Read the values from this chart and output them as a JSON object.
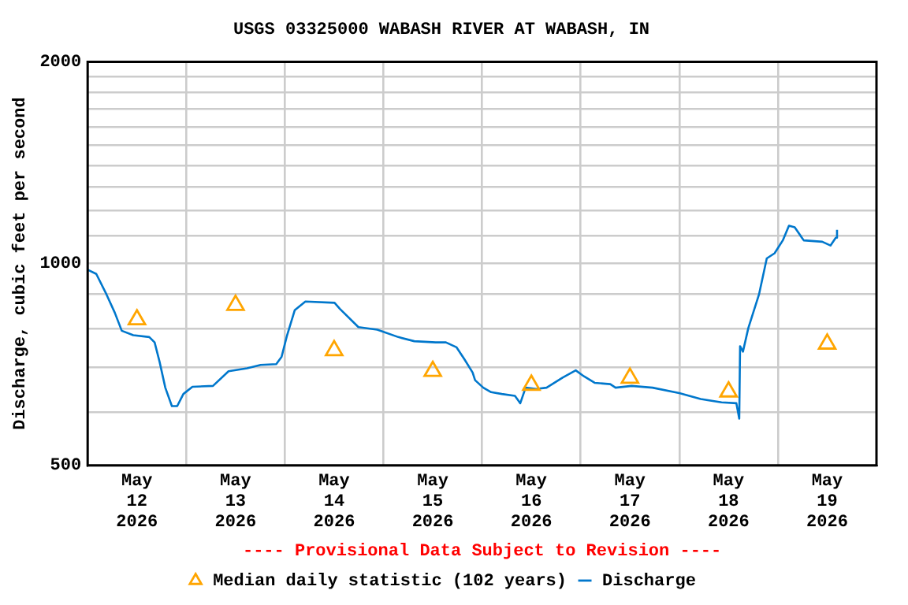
{
  "chart_data": {
    "type": "line",
    "title": "USGS 03325000 WABASH RIVER AT WABASH, IN",
    "ylabel": "Discharge, cubic feet per second",
    "annotations": [
      "---- Provisional Data Subject to Revision ----"
    ],
    "log": "y",
    "grid": true,
    "legend": "bottom",
    "xlim": [
      "2026-05-12",
      "2026-05-20"
    ],
    "xticks": [
      {
        "value": "2026-05-12T12:00",
        "label": "May 12 2026"
      },
      {
        "value": "2026-05-13",
        "label": null
      },
      {
        "value": "2026-05-13T12:00",
        "label": "May 13 2026"
      },
      {
        "value": "2026-05-14",
        "label": null
      },
      {
        "value": "2026-05-14T12:00",
        "label": "May 14 2026"
      },
      {
        "value": "2026-05-15",
        "label": null
      },
      {
        "value": "2026-05-15T12:00",
        "label": "May 15 2026"
      },
      {
        "value": "2026-05-16",
        "label": null
      },
      {
        "value": "2026-05-16T12:00",
        "label": "May 16 2026"
      },
      {
        "value": "2026-05-17",
        "label": null
      },
      {
        "value": "2026-05-17T12:00",
        "label": "May 17 2026"
      },
      {
        "value": "2026-05-18",
        "label": null
      },
      {
        "value": "2026-05-18T12:00",
        "label": "May 18 2026"
      },
      {
        "value": "2026-05-19",
        "label": null
      },
      {
        "value": "2026-05-19T12:00",
        "label": "May 19 2026"
      }
    ],
    "ylim": [
      500,
      2000
    ],
    "yticks": [
      500,
      {
        "value": 600,
        "label": null
      },
      {
        "value": 700,
        "label": null
      },
      {
        "value": 800,
        "label": null
      },
      {
        "value": 900,
        "label": null
      },
      1000,
      {
        "value": 1100,
        "label": null
      },
      {
        "value": 1200,
        "label": null
      },
      {
        "value": 1300,
        "label": null
      },
      {
        "value": 1400,
        "label": null
      },
      {
        "value": 1500,
        "label": null
      },
      {
        "value": 1600,
        "label": null
      },
      {
        "value": 1700,
        "label": null
      },
      {
        "value": 1800,
        "label": null
      },
      {
        "value": 1900,
        "label": null
      },
      2000
    ],
    "series": [
      {
        "name": "Median daily statistic (102 years)",
        "type": "scatter",
        "marker": "triangle",
        "color": "#ffa500",
        "x": [
          "2026-05-12T12:00",
          "2026-05-13T12:00",
          "2026-05-14T12:00",
          "2026-05-15T12:00",
          "2026-05-16T12:00",
          "2026-05-17T12:00",
          "2026-05-18T12:00",
          "2026-05-19T12:00"
        ],
        "values": [
          825,
          867,
          742,
          691,
          659,
          675,
          644,
          759
        ]
      },
      {
        "name": "Discharge",
        "marker": "none",
        "line_style": "solid",
        "color": "#0077cc",
        "x": [
          "2026-05-12T00:00",
          "2026-05-12T02:06",
          "2026-05-12T04:36",
          "2026-05-12T06:36",
          "2026-05-12T08:18",
          "2026-05-12T11:06",
          "2026-05-12T15:00",
          "2026-05-12T16:18",
          "2026-05-12T17:30",
          "2026-05-12T18:54",
          "2026-05-12T20:30",
          "2026-05-12T21:48",
          "2026-05-12T23:18",
          "2026-05-13T01:30",
          "2026-05-13T06:30",
          "2026-05-13T10:18",
          "2026-05-13T14:48",
          "2026-05-13T18:06",
          "2026-05-13T21:54",
          "2026-05-13T23:12",
          "2026-05-14T00:30",
          "2026-05-14T02:24",
          "2026-05-14T05:00",
          "2026-05-14T12:06",
          "2026-05-14T13:24",
          "2026-05-14T17:54",
          "2026-05-14T22:30",
          "2026-05-15T03:36",
          "2026-05-15T07:30",
          "2026-05-15T12:42",
          "2026-05-15T15:12",
          "2026-05-15T17:48",
          "2026-05-15T19:42",
          "2026-05-15T21:42",
          "2026-05-15T22:18",
          "2026-05-16T00:18",
          "2026-05-16T02:12",
          "2026-05-16T04:48",
          "2026-05-16T08:00",
          "2026-05-16T09:18",
          "2026-05-16T10:36",
          "2026-05-16T13:12",
          "2026-05-16T15:42",
          "2026-05-16T19:36",
          "2026-05-16T22:48",
          "2026-05-17T00:48",
          "2026-05-17T03:24",
          "2026-05-17T07:12",
          "2026-05-17T08:30",
          "2026-05-17T12:24",
          "2026-05-17T17:30",
          "2026-05-18T00:00",
          "2026-05-18T05:12",
          "2026-05-18T10:18",
          "2026-05-18T13:54",
          "2026-05-18T14:36",
          "2026-05-18T14:48",
          "2026-05-18T15:30",
          "2026-05-18T16:48",
          "2026-05-18T19:24",
          "2026-05-18T21:18",
          "2026-05-18T23:12",
          "2026-05-19T01:12",
          "2026-05-19T02:42",
          "2026-05-19T04:06",
          "2026-05-19T06:18",
          "2026-05-19T10:48",
          "2026-05-19T12:48",
          "2026-05-19T14:06",
          "2026-05-19T14:24"
        ],
        "values": [
          979,
          965,
          899,
          845,
          794,
          782,
          777,
          763,
          714,
          653,
          613,
          613,
          639,
          655,
          657,
          691,
          698,
          706,
          708,
          726,
          780,
          852,
          878,
          874,
          856,
          804,
          797,
          777,
          766,
          763,
          763,
          750,
          720,
          688,
          670,
          653,
          643,
          639,
          635,
          619,
          653,
          650,
          653,
          676,
          693,
          679,
          664,
          661,
          653,
          657,
          653,
          641,
          628,
          621,
          619,
          587,
          753,
          739,
          801,
          899,
          1018,
          1036,
          1083,
          1139,
          1133,
          1083,
          1078,
          1064,
          1093,
          1123
        ]
      }
    ]
  }
}
